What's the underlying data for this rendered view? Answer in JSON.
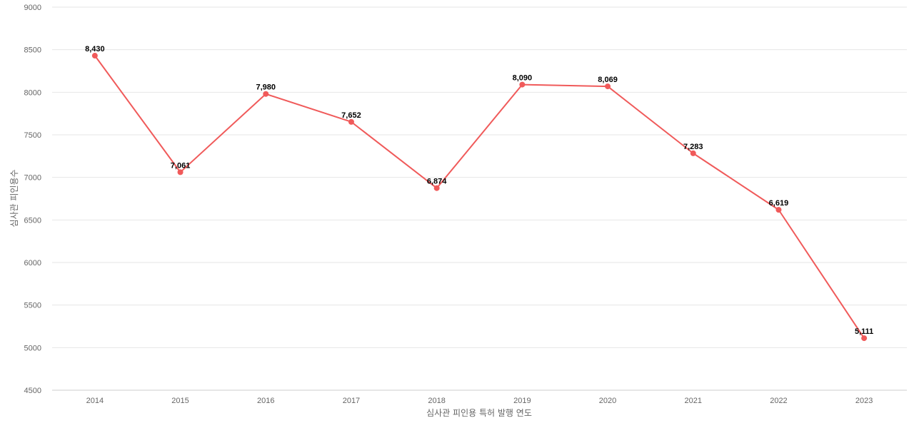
{
  "chart_data": {
    "type": "line",
    "title": "",
    "xlabel": "심사관 피인용 특허 발행 연도",
    "ylabel": "심사관 피인용수",
    "categories": [
      "2014",
      "2015",
      "2016",
      "2017",
      "2018",
      "2019",
      "2020",
      "2021",
      "2022",
      "2023"
    ],
    "series": [
      {
        "values": [
          8430,
          7061,
          7980,
          7652,
          6874,
          8090,
          8069,
          7283,
          6619,
          5111
        ],
        "labels": [
          "8,430",
          "7,061",
          "7,980",
          "7,652",
          "6,874",
          "8,090",
          "8,069",
          "7,283",
          "6,619",
          "5,111"
        ],
        "color": "#f05a5a"
      }
    ],
    "ylim": [
      4500,
      9000
    ],
    "yticks": [
      "4500",
      "5000",
      "5500",
      "6000",
      "6500",
      "7000",
      "7500",
      "8000",
      "8500",
      "9000"
    ],
    "grid": true,
    "legend": "none"
  }
}
